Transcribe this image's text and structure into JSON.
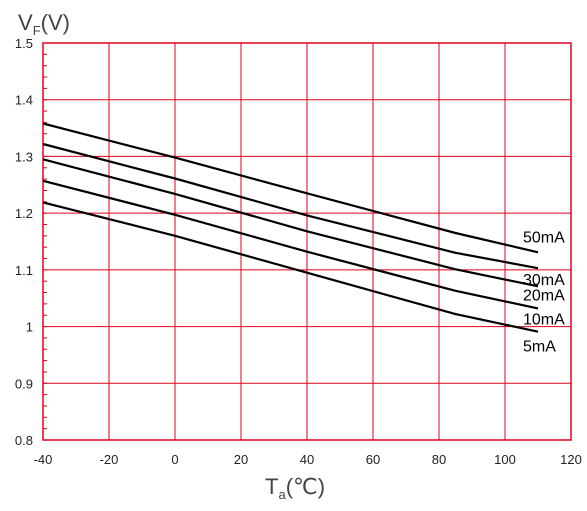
{
  "chart_data": {
    "type": "line",
    "title": "",
    "ylabel_main": "V",
    "ylabel_sub": "F",
    "ylabel_unit": "(V)",
    "xlabel_main": "T",
    "xlabel_sub": "a",
    "xlabel_unit": "(℃)",
    "xlim": [
      -40,
      120
    ],
    "ylim": [
      0.8,
      1.5
    ],
    "xticks": [
      -40,
      -20,
      0,
      20,
      40,
      60,
      80,
      100,
      120
    ],
    "yticks": [
      0.8,
      0.9,
      1,
      1.1,
      1.2,
      1.3,
      1.4,
      1.5
    ],
    "xtick_labels": [
      "-40",
      "-20",
      "0",
      "20",
      "40",
      "60",
      "80",
      "100",
      "120"
    ],
    "ytick_labels": [
      "0.8",
      "0.9",
      "1",
      "1.1",
      "1.2",
      "1.3",
      "1.4",
      "1.5"
    ],
    "grid": true,
    "grid_color": "#e0001b",
    "line_color": "#000000",
    "series": [
      {
        "name": "50mA",
        "x": [
          -40,
          0,
          40,
          85,
          110
        ],
        "y": [
          1.358,
          1.298,
          1.235,
          1.165,
          1.131
        ]
      },
      {
        "name": "30mA",
        "x": [
          -40,
          0,
          40,
          85,
          110
        ],
        "y": [
          1.322,
          1.261,
          1.196,
          1.13,
          1.103
        ]
      },
      {
        "name": "20mA",
        "x": [
          -40,
          0,
          40,
          85,
          110
        ],
        "y": [
          1.295,
          1.234,
          1.168,
          1.101,
          1.071
        ]
      },
      {
        "name": "10mA",
        "x": [
          -40,
          0,
          40,
          85,
          110
        ],
        "y": [
          1.257,
          1.197,
          1.132,
          1.063,
          1.032
        ]
      },
      {
        "name": "5mA",
        "x": [
          -40,
          0,
          40,
          85,
          110
        ],
        "y": [
          1.219,
          1.16,
          1.095,
          1.022,
          0.991
        ]
      }
    ]
  }
}
